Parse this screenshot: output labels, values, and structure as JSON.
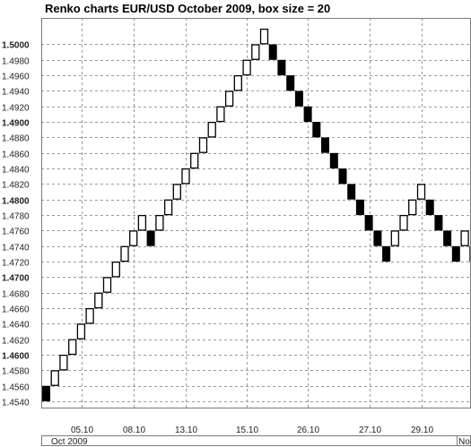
{
  "chart_data": {
    "type": "renko",
    "title": "Renko charts EUR/USD October 2009, box size = 20",
    "box_size": 0.002,
    "ylim": [
      1.4532,
      1.5034
    ],
    "y_ticks": [
      1.454,
      1.456,
      1.458,
      1.46,
      1.462,
      1.464,
      1.466,
      1.468,
      1.47,
      1.472,
      1.474,
      1.476,
      1.478,
      1.48,
      1.482,
      1.484,
      1.486,
      1.488,
      1.49,
      1.492,
      1.494,
      1.496,
      1.498,
      1.5
    ],
    "y_tick_labels": [
      "1.4540",
      "1.4560",
      "1.4580",
      "1.4600",
      "1.4620",
      "1.4640",
      "1.4660",
      "1.4680",
      "1.4700",
      "1.4720",
      "1.4740",
      "1.4760",
      "1.4780",
      "1.4800",
      "1.4820",
      "1.4840",
      "1.4860",
      "1.4880",
      "1.4900",
      "1.4920",
      "1.4940",
      "1.4960",
      "1.4980",
      "1.5000"
    ],
    "y_major_ticks": [
      "1.4600",
      "1.4700",
      "1.4800",
      "1.4900",
      "1.5000"
    ],
    "x_tick_labels": [
      "05.10",
      "08.10",
      "13.10",
      "15.10",
      "26.10",
      "27.10",
      "29.10"
    ],
    "x_tick_brick_index": [
      4.5,
      10.5,
      16.5,
      23.5,
      30.5,
      37.5,
      43.5
    ],
    "x_period_labels": [
      "Oct 2009",
      "No"
    ],
    "grid": true,
    "bricks": [
      {
        "low": 1.454,
        "high": 1.456,
        "dir": "down"
      },
      {
        "low": 1.456,
        "high": 1.458,
        "dir": "up"
      },
      {
        "low": 1.458,
        "high": 1.46,
        "dir": "up"
      },
      {
        "low": 1.46,
        "high": 1.462,
        "dir": "up"
      },
      {
        "low": 1.462,
        "high": 1.464,
        "dir": "up"
      },
      {
        "low": 1.464,
        "high": 1.466,
        "dir": "up"
      },
      {
        "low": 1.466,
        "high": 1.468,
        "dir": "up"
      },
      {
        "low": 1.468,
        "high": 1.47,
        "dir": "up"
      },
      {
        "low": 1.47,
        "high": 1.472,
        "dir": "up"
      },
      {
        "low": 1.472,
        "high": 1.474,
        "dir": "up"
      },
      {
        "low": 1.474,
        "high": 1.476,
        "dir": "up"
      },
      {
        "low": 1.476,
        "high": 1.478,
        "dir": "up"
      },
      {
        "low": 1.474,
        "high": 1.476,
        "dir": "down"
      },
      {
        "low": 1.476,
        "high": 1.478,
        "dir": "up"
      },
      {
        "low": 1.478,
        "high": 1.48,
        "dir": "up"
      },
      {
        "low": 1.48,
        "high": 1.482,
        "dir": "up"
      },
      {
        "low": 1.482,
        "high": 1.484,
        "dir": "up"
      },
      {
        "low": 1.484,
        "high": 1.486,
        "dir": "up"
      },
      {
        "low": 1.486,
        "high": 1.488,
        "dir": "up"
      },
      {
        "low": 1.488,
        "high": 1.49,
        "dir": "up"
      },
      {
        "low": 1.49,
        "high": 1.492,
        "dir": "up"
      },
      {
        "low": 1.492,
        "high": 1.494,
        "dir": "up"
      },
      {
        "low": 1.494,
        "high": 1.496,
        "dir": "up"
      },
      {
        "low": 1.496,
        "high": 1.498,
        "dir": "up"
      },
      {
        "low": 1.498,
        "high": 1.5,
        "dir": "up"
      },
      {
        "low": 1.5,
        "high": 1.502,
        "dir": "up"
      },
      {
        "low": 1.498,
        "high": 1.5,
        "dir": "down"
      },
      {
        "low": 1.496,
        "high": 1.498,
        "dir": "down"
      },
      {
        "low": 1.494,
        "high": 1.496,
        "dir": "down"
      },
      {
        "low": 1.492,
        "high": 1.494,
        "dir": "down"
      },
      {
        "low": 1.49,
        "high": 1.492,
        "dir": "down"
      },
      {
        "low": 1.488,
        "high": 1.49,
        "dir": "down"
      },
      {
        "low": 1.486,
        "high": 1.488,
        "dir": "down"
      },
      {
        "low": 1.484,
        "high": 1.486,
        "dir": "down"
      },
      {
        "low": 1.482,
        "high": 1.484,
        "dir": "down"
      },
      {
        "low": 1.48,
        "high": 1.482,
        "dir": "down"
      },
      {
        "low": 1.478,
        "high": 1.48,
        "dir": "down"
      },
      {
        "low": 1.476,
        "high": 1.478,
        "dir": "down"
      },
      {
        "low": 1.474,
        "high": 1.476,
        "dir": "down"
      },
      {
        "low": 1.472,
        "high": 1.474,
        "dir": "down"
      },
      {
        "low": 1.474,
        "high": 1.476,
        "dir": "up"
      },
      {
        "low": 1.476,
        "high": 1.478,
        "dir": "up"
      },
      {
        "low": 1.478,
        "high": 1.48,
        "dir": "up"
      },
      {
        "low": 1.48,
        "high": 1.482,
        "dir": "up"
      },
      {
        "low": 1.478,
        "high": 1.48,
        "dir": "down"
      },
      {
        "low": 1.476,
        "high": 1.478,
        "dir": "down"
      },
      {
        "low": 1.474,
        "high": 1.476,
        "dir": "down"
      },
      {
        "low": 1.472,
        "high": 1.474,
        "dir": "down"
      },
      {
        "low": 1.474,
        "high": 1.476,
        "dir": "up"
      },
      {
        "low": 1.472,
        "high": 1.474,
        "dir": "down"
      },
      {
        "low": 1.474,
        "high": 1.476,
        "dir": "up"
      }
    ],
    "colors": {
      "up_fill": "#ffffff",
      "down_fill": "#000000",
      "brick_stroke": "#000000",
      "grid": "#9a9a9a"
    }
  }
}
